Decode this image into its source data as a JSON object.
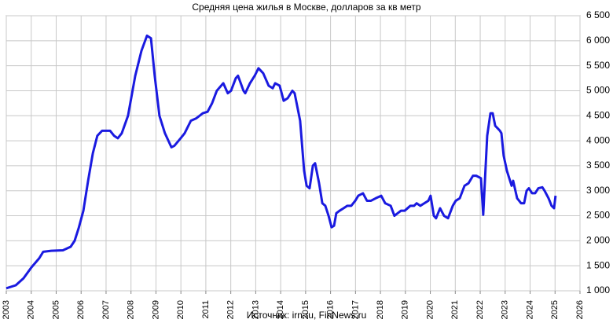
{
  "chart_data": {
    "type": "line",
    "title": "Средняя цена жилья в Москве, долларов за кв метр",
    "source": "Источник: irn.ru, FinNews.ru",
    "x": [
      2003.0,
      2003.38,
      2003.69,
      2004.01,
      2004.32,
      2004.48,
      2004.8,
      2005.27,
      2005.58,
      2005.74,
      2005.9,
      2006.09,
      2006.28,
      2006.47,
      2006.65,
      2006.84,
      2007.16,
      2007.32,
      2007.47,
      2007.63,
      2007.88,
      2008.17,
      2008.42,
      2008.64,
      2008.8,
      2008.95,
      2009.14,
      2009.36,
      2009.62,
      2009.74,
      2009.99,
      2010.15,
      2010.4,
      2010.62,
      2010.88,
      2011.07,
      2011.25,
      2011.44,
      2011.7,
      2011.88,
      2012.01,
      2012.2,
      2012.29,
      2012.51,
      2012.58,
      2012.77,
      2012.96,
      2013.11,
      2013.3,
      2013.52,
      2013.68,
      2013.78,
      2013.96,
      2014.12,
      2014.28,
      2014.47,
      2014.56,
      2014.78,
      2014.94,
      2015.04,
      2015.16,
      2015.29,
      2015.38,
      2015.54,
      2015.67,
      2015.79,
      2015.92,
      2016.04,
      2016.14,
      2016.23,
      2016.36,
      2016.52,
      2016.67,
      2016.83,
      2016.99,
      2017.11,
      2017.3,
      2017.46,
      2017.62,
      2017.81,
      2018.03,
      2018.19,
      2018.41,
      2018.56,
      2018.82,
      2018.97,
      2019.2,
      2019.35,
      2019.45,
      2019.6,
      2019.76,
      2019.92,
      2020.01,
      2020.14,
      2020.23,
      2020.39,
      2020.55,
      2020.71,
      2020.9,
      2021.02,
      2021.18,
      2021.37,
      2021.53,
      2021.71,
      2021.84,
      2022.03,
      2022.12,
      2022.28,
      2022.41,
      2022.5,
      2022.6,
      2022.79,
      2022.85,
      2022.94,
      2023.07,
      2023.26,
      2023.32,
      2023.48,
      2023.64,
      2023.76,
      2023.86,
      2023.95,
      2024.08,
      2024.2,
      2024.33,
      2024.49,
      2024.58,
      2024.74,
      2024.86,
      2024.96,
      2025.02
    ],
    "series": [
      {
        "name": "Средняя цена",
        "color": "#1a1ae0",
        "values": [
          1050,
          1110,
          1250,
          1470,
          1650,
          1780,
          1800,
          1810,
          1880,
          2000,
          2250,
          2600,
          3200,
          3750,
          4100,
          4200,
          4200,
          4100,
          4050,
          4150,
          4500,
          5300,
          5800,
          6100,
          6050,
          5300,
          4500,
          4150,
          3870,
          3900,
          4050,
          4150,
          4400,
          4450,
          4550,
          4580,
          4750,
          5000,
          5150,
          4950,
          5000,
          5250,
          5300,
          5000,
          4950,
          5150,
          5300,
          5450,
          5350,
          5100,
          5050,
          5150,
          5100,
          4800,
          4850,
          5000,
          4950,
          4400,
          3400,
          3100,
          3050,
          3500,
          3550,
          3150,
          2750,
          2700,
          2500,
          2270,
          2300,
          2550,
          2600,
          2650,
          2700,
          2700,
          2800,
          2900,
          2950,
          2800,
          2800,
          2850,
          2900,
          2750,
          2700,
          2500,
          2600,
          2600,
          2700,
          2700,
          2750,
          2700,
          2750,
          2800,
          2900,
          2500,
          2450,
          2650,
          2500,
          2450,
          2700,
          2800,
          2850,
          3100,
          3150,
          3300,
          3300,
          3250,
          2520,
          4100,
          4550,
          4550,
          4300,
          4200,
          4150,
          3700,
          3400,
          3100,
          3200,
          2850,
          2750,
          2750,
          3000,
          3050,
          2950,
          2950,
          3050,
          3070,
          3000,
          2850,
          2700,
          2650,
          2900
        ]
      }
    ],
    "xlim": [
      2003,
      2026
    ],
    "xticks": [
      2003,
      2004,
      2005,
      2006,
      2007,
      2008,
      2009,
      2010,
      2011,
      2012,
      2013,
      2014,
      2015,
      2016,
      2017,
      2018,
      2019,
      2020,
      2021,
      2022,
      2023,
      2024,
      2025,
      2026
    ],
    "ylim": [
      1000,
      6500
    ],
    "yticks": [
      {
        "value": 1000,
        "label": "1 000"
      },
      {
        "value": 1500,
        "label": "1 500"
      },
      {
        "value": 2000,
        "label": "2 000"
      },
      {
        "value": 2500,
        "label": "2 500"
      },
      {
        "value": 3000,
        "label": "3 000"
      },
      {
        "value": 3500,
        "label": "3 500"
      },
      {
        "value": 4000,
        "label": "4 000"
      },
      {
        "value": 4500,
        "label": "4 500"
      },
      {
        "value": 5000,
        "label": "5 000"
      },
      {
        "value": 5500,
        "label": "5 500"
      },
      {
        "value": 6000,
        "label": "6 000"
      },
      {
        "value": 6500,
        "label": "6 500"
      }
    ],
    "grid": true
  }
}
